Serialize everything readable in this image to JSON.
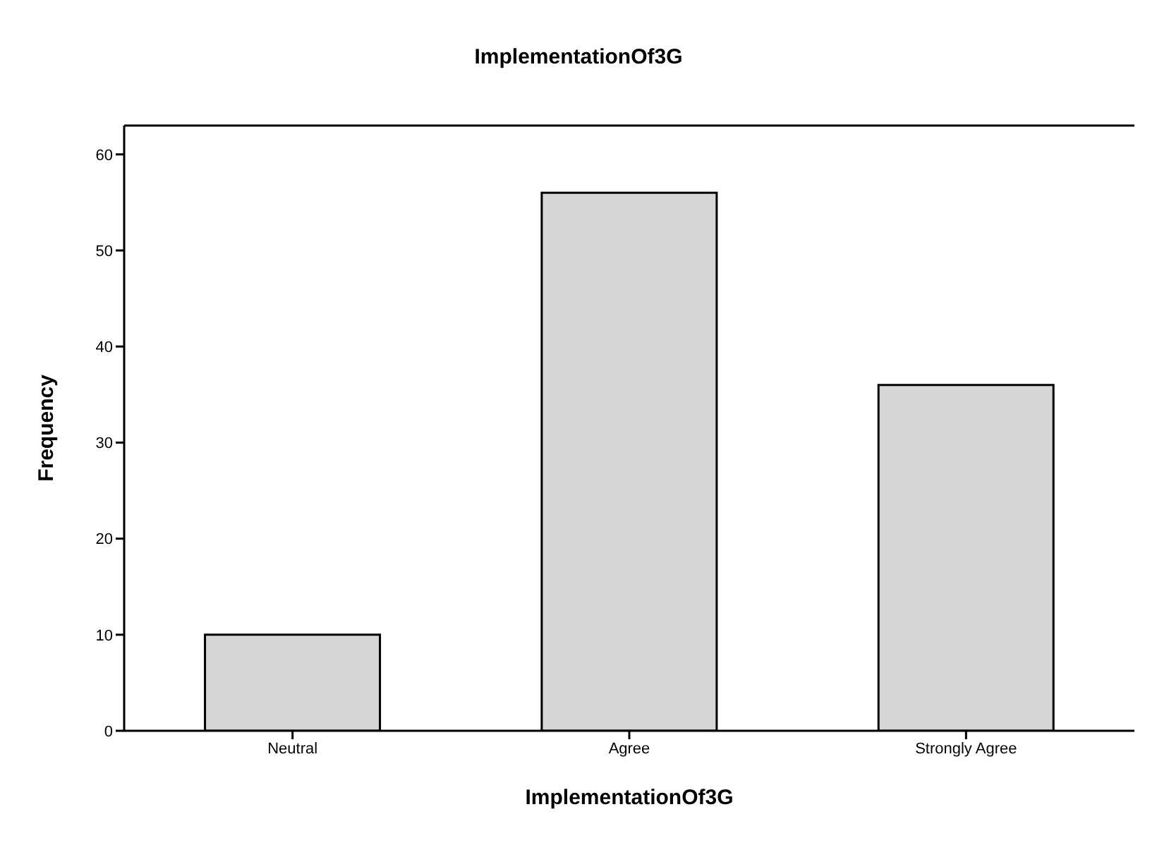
{
  "chart_data": {
    "type": "bar",
    "title": "ImplementationOf3G",
    "xlabel": "ImplementationOf3G",
    "ylabel": "Frequency",
    "categories": [
      "Neutral",
      "Agree",
      "Strongly Agree"
    ],
    "values": [
      10,
      56,
      36
    ],
    "color": "#d6d6d6",
    "ylim": [
      0,
      63
    ],
    "yticks": [
      0,
      10,
      20,
      30,
      40,
      50,
      60
    ],
    "grid": false,
    "legend": false
  }
}
